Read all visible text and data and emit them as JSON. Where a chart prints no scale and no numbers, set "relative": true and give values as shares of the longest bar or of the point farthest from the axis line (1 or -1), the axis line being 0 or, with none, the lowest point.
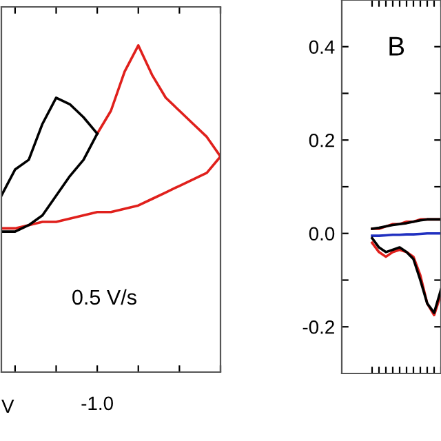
{
  "chart_data": [
    {
      "type": "line",
      "relative": true,
      "xlabel": "V",
      "tick_labels": false,
      "categories": [
        null,
        null,
        null,
        null,
        null,
        null,
        null,
        null,
        null,
        null,
        null,
        null,
        null,
        null,
        null,
        null,
        null
      ],
      "annotations": [
        "0.5 V/s",
        "-1.0"
      ],
      "series": [
        {
          "color": "#e0201c",
          "values": [
            0.44,
            0.44,
            0.45,
            0.46,
            0.46,
            0.47,
            0.48,
            0.49,
            0.49,
            0.5,
            0.51,
            0.53,
            0.55,
            0.57,
            0.59,
            0.61,
            0.66
          ]
        },
        {
          "color": "#e0201c",
          "values": [
            null,
            null,
            null,
            null,
            null,
            null,
            null,
            0.73,
            0.8,
            0.92,
            1.0,
            0.91,
            0.84,
            0.8,
            0.76,
            0.72,
            0.66
          ]
        },
        {
          "color": "#000000",
          "values": [
            0.43,
            0.43,
            0.45,
            0.48,
            0.54,
            0.6,
            0.65,
            0.73,
            null,
            null,
            null,
            null,
            null,
            null,
            null,
            null,
            null
          ]
        },
        {
          "color": "#000000",
          "values": [
            0.54,
            0.62,
            0.65,
            0.76,
            0.84,
            0.82,
            0.78,
            0.73,
            null,
            null,
            null,
            null,
            null,
            null,
            null,
            null,
            null
          ]
        }
      ]
    },
    {
      "type": "line",
      "tick_labels": "y",
      "categories": [
        null,
        null,
        null,
        null,
        null,
        null,
        null,
        null,
        null,
        null,
        null
      ],
      "ylim": [
        -0.3,
        0.5
      ],
      "yticks": [
        -0.2,
        {
          "value": -0.1,
          "label": null
        },
        {
          "value": 0.0,
          "label": "0.0"
        },
        {
          "value": 0.1,
          "label": null
        },
        0.2,
        {
          "value": 0.3,
          "label": null
        },
        0.4
      ],
      "annotations": [
        "B"
      ],
      "series": [
        {
          "color": "#e0201c",
          "values": [
            0.01,
            0.01,
            0.015,
            0.02,
            0.02,
            0.025,
            0.025,
            0.03,
            0.03,
            0.03,
            0.03
          ]
        },
        {
          "color": "#000000",
          "values": [
            0.01,
            0.012,
            0.015,
            0.018,
            0.02,
            0.022,
            0.025,
            0.028,
            0.03,
            0.03,
            0.03
          ]
        },
        {
          "color": "#2030c0",
          "values": [
            -0.005,
            -0.005,
            -0.004,
            -0.003,
            -0.003,
            -0.002,
            -0.002,
            -0.001,
            0.0,
            0.0,
            0.0
          ]
        },
        {
          "color": "#e0201c",
          "values": [
            -0.02,
            -0.04,
            -0.05,
            -0.04,
            -0.035,
            -0.04,
            -0.05,
            -0.09,
            -0.15,
            -0.175,
            -0.13
          ]
        },
        {
          "color": "#000000",
          "values": [
            -0.01,
            -0.03,
            -0.04,
            -0.035,
            -0.03,
            -0.04,
            -0.055,
            -0.1,
            -0.15,
            -0.17,
            -0.12
          ]
        }
      ]
    }
  ]
}
